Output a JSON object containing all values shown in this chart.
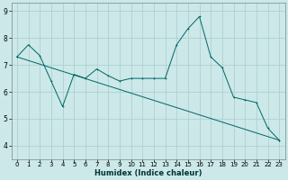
{
  "title": "",
  "xlabel": "Humidex (Indice chaleur)",
  "ylabel": "",
  "background_color": "#cce8e8",
  "grid_color": "#aacccc",
  "line_color": "#006666",
  "xlim": [
    -0.5,
    23.5
  ],
  "ylim": [
    3.5,
    9.3
  ],
  "xticks": [
    0,
    1,
    2,
    3,
    4,
    5,
    6,
    7,
    8,
    9,
    10,
    11,
    12,
    13,
    14,
    15,
    16,
    17,
    18,
    19,
    20,
    21,
    22,
    23
  ],
  "yticks": [
    4,
    5,
    6,
    7,
    8,
    9
  ],
  "series1_x": [
    0,
    1,
    2,
    3,
    4,
    5,
    6,
    7,
    8,
    9,
    10,
    11,
    12,
    13,
    14,
    15,
    16,
    17,
    18,
    19,
    20,
    21,
    22,
    23
  ],
  "series1_y": [
    7.3,
    7.75,
    7.35,
    6.4,
    5.45,
    6.65,
    6.5,
    6.85,
    6.6,
    6.4,
    6.5,
    6.5,
    6.5,
    6.5,
    7.75,
    8.35,
    8.8,
    7.3,
    6.9,
    5.8,
    5.7,
    5.6,
    4.65,
    4.2
  ],
  "series2_x": [
    0,
    23
  ],
  "series2_y": [
    7.3,
    4.2
  ],
  "tick_fontsize": 5.0,
  "xlabel_fontsize": 6.0
}
